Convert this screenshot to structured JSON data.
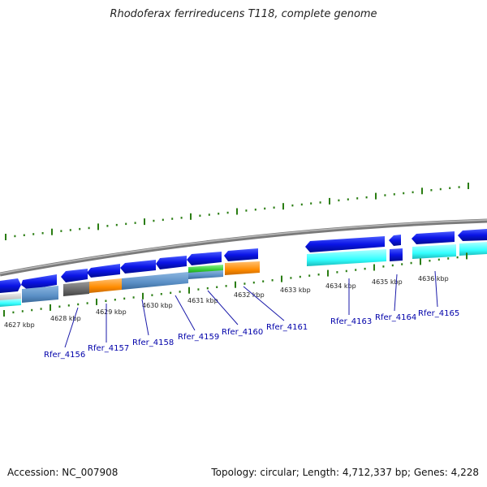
{
  "title": "Rhodoferax ferrireducens T118, complete genome",
  "footer": {
    "accession": "Accession: NC_007908",
    "summary": "Topology: circular; Length: 4,712,337 bp; Genes: 4,228"
  },
  "kbp_labels": [
    "4627 kbp",
    "4628 kbp",
    "4629 kbp",
    "4630 kbp",
    "4631 kbp",
    "4632 kbp",
    "4633 kbp",
    "4634 kbp",
    "4635 kbp",
    "4636 kbp"
  ],
  "gene_labels": [
    "Rfer_4156",
    "Rfer_4157",
    "Rfer_4158",
    "Rfer_4159",
    "Rfer_4160",
    "Rfer_4161",
    "Rfer_4163",
    "Rfer_4164",
    "Rfer_4165"
  ],
  "colors": {
    "cds_blue": "#0a14e6",
    "backbone_gray": "#888888",
    "tick_green": "#2a7d12",
    "cyan": "#33ffff",
    "steel": "#5a8fc6",
    "orange": "#ff8c00",
    "dark_gray": "#666666",
    "green": "#33cc33"
  }
}
